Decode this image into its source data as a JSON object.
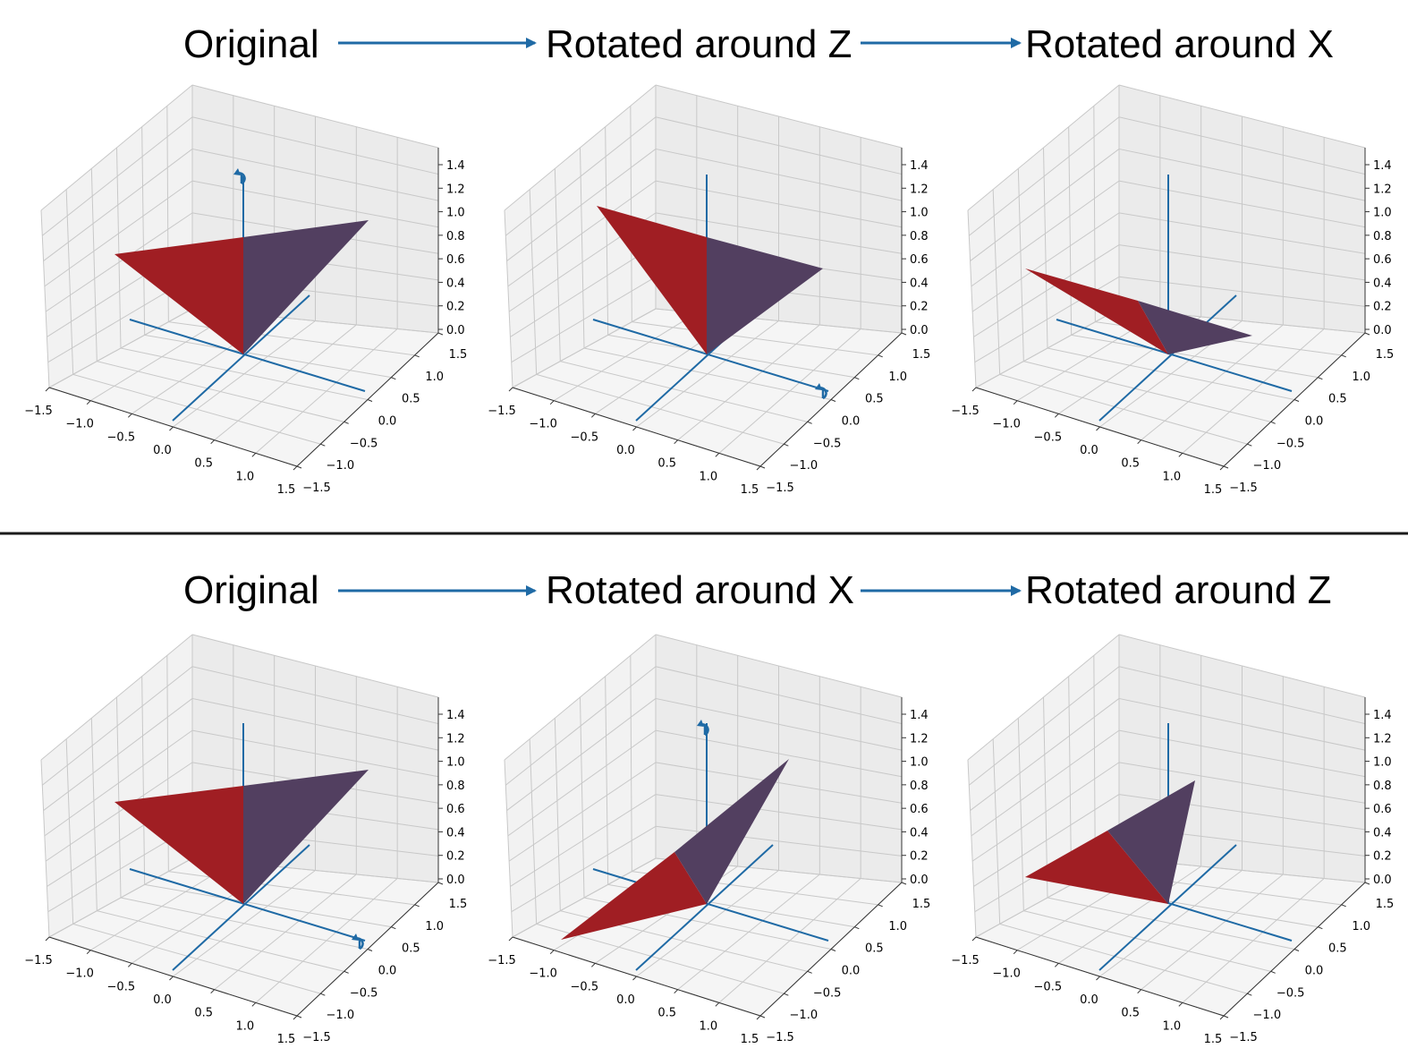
{
  "rows": [
    {
      "titles": [
        "Original",
        "Rotated around Z",
        "Rotated around X"
      ],
      "panels": [
        {
          "rot_marker": "z"
        },
        {
          "rot_marker": "x"
        },
        {
          "rot_marker": "none"
        }
      ]
    },
    {
      "titles": [
        "Original",
        "Rotated around X",
        "Rotated around Z"
      ],
      "panels": [
        {
          "rot_marker": "x"
        },
        {
          "rot_marker": "z"
        },
        {
          "rot_marker": "none"
        }
      ]
    }
  ],
  "axes": {
    "x_ticks": [
      "−1.5",
      "−1.0",
      "−0.5",
      "0.0",
      "0.5",
      "1.0",
      "1.5"
    ],
    "y_ticks": [
      "1.5",
      "1.0",
      "0.5",
      "0.0",
      "−0.5",
      "−1.0",
      "−1.5"
    ],
    "z_ticks": [
      "1.4",
      "1.2",
      "1.0",
      "0.8",
      "0.6",
      "0.4",
      "0.2",
      "0.0"
    ]
  },
  "colors": {
    "face_red": "#a01e23",
    "face_purple": "#523f60",
    "axis_line": "#1f6aa5",
    "arrow": "#1f6aa5",
    "pane": "#f2f2f2",
    "grid": "#c8c8c8"
  }
}
